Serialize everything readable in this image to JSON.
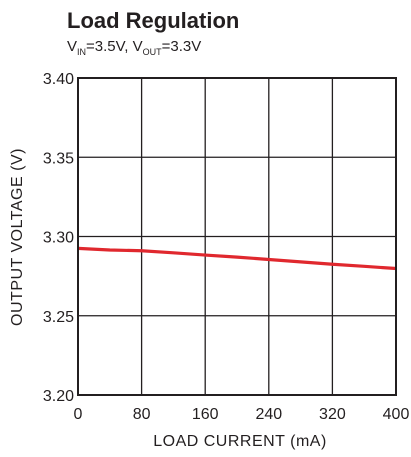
{
  "chart_data": {
    "type": "line",
    "title": "Load Regulation",
    "subtitle": {
      "vin_base": "V",
      "vin_sub": "IN",
      "vin_value": "=3.5V, ",
      "vout_base": "V",
      "vout_sub": "OUT",
      "vout_value": "=3.3V"
    },
    "xlabel": "LOAD CURRENT (mA)",
    "ylabel": "OUTPUT VOLTAGE (V)",
    "xlim": [
      0,
      400
    ],
    "ylim": [
      3.2,
      3.4
    ],
    "xticks": [
      "0",
      "80",
      "160",
      "240",
      "320",
      "400"
    ],
    "yticks": [
      "3.40",
      "3.35",
      "3.30",
      "3.25",
      "3.20"
    ],
    "grid": true,
    "series": [
      {
        "color": "#e0282e",
        "x": [
          0,
          40,
          80,
          120,
          160,
          200,
          240,
          280,
          320,
          360,
          400
        ],
        "y": [
          3.2925,
          3.2915,
          3.291,
          3.2897,
          3.2883,
          3.287,
          3.2855,
          3.284,
          3.2825,
          3.2812,
          3.2798
        ]
      }
    ]
  }
}
